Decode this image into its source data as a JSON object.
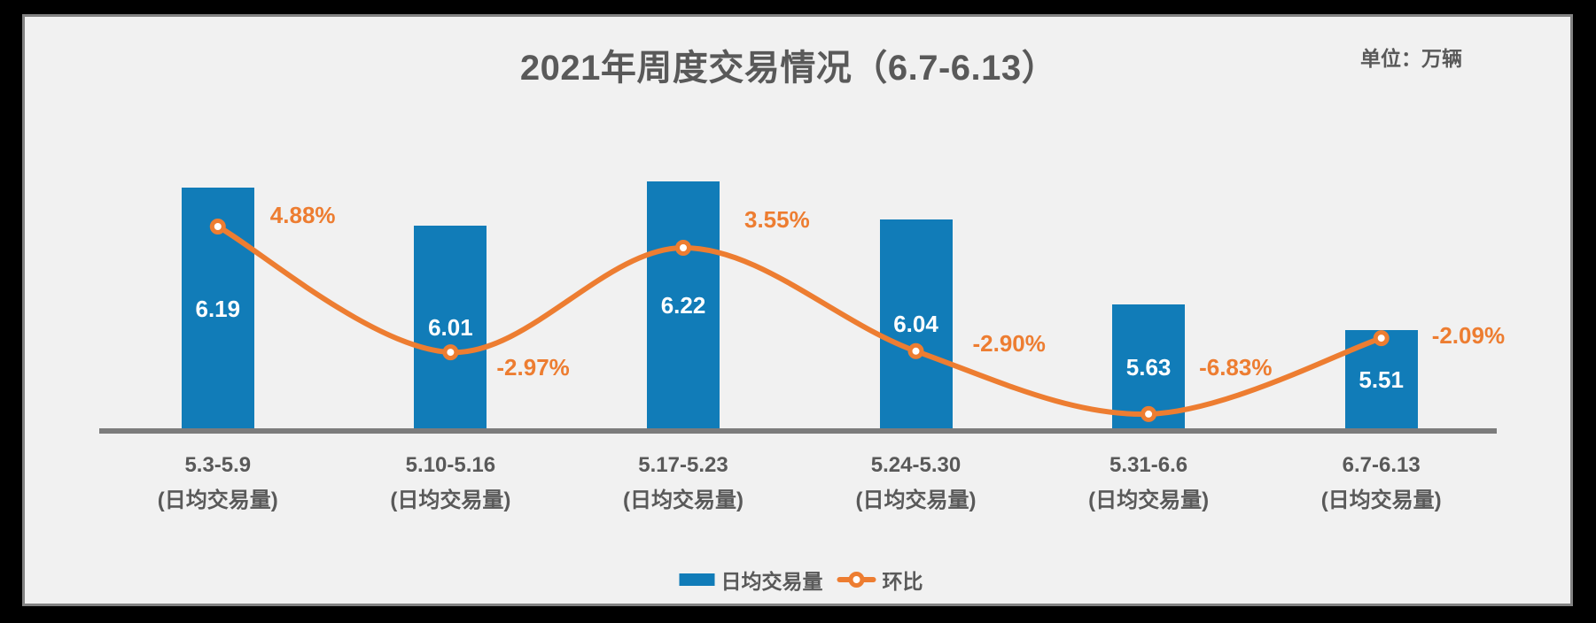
{
  "frame": {
    "outer_background": "#000000",
    "card_background": "#F1F1F1",
    "card_border_color": "#828282",
    "axis_line_color": "#7C7C7C",
    "text_color": "#595959"
  },
  "header": {
    "title": "2021年周度交易情况（6.7-6.13）",
    "unit_label": "单位：万辆"
  },
  "chart_data": {
    "type": "bar",
    "subtype": "combo-bar-line",
    "title": "2021年周度交易情况（6.7-6.13）",
    "unit": "万辆",
    "grid": false,
    "legend_position": "bottom",
    "categories": [
      "5.3-5.9",
      "5.10-5.16",
      "5.17-5.23",
      "5.24-5.30",
      "5.31-6.6",
      "6.7-6.13"
    ],
    "category_sub_label": "(日均交易量)",
    "series": [
      {
        "name": "日均交易量",
        "type": "bar",
        "color": "#117CB8",
        "values": [
          6.19,
          6.01,
          6.22,
          6.04,
          5.63,
          5.51
        ],
        "value_labels": [
          "6.19",
          "6.01",
          "6.22",
          "6.04",
          "5.63",
          "5.51"
        ],
        "value_label_color": "#FFFFFF",
        "axis_min": 5.03,
        "axis_max": 6.45
      },
      {
        "name": "环比",
        "type": "line",
        "color": "#ED7D31",
        "marker": "circle-white-fill",
        "values_pct": [
          4.88,
          -2.97,
          3.55,
          -2.9,
          -6.83,
          -2.09
        ],
        "point_labels": [
          "4.88%",
          "-2.97%",
          "3.55%",
          "-2.90%",
          "-6.83%",
          "-2.09%"
        ],
        "label_offsets": [
          [
            59,
            -26
          ],
          [
            52,
            4
          ],
          [
            69,
            -45
          ],
          [
            64,
            -22
          ],
          [
            57,
            -66
          ],
          [
            57,
            -16
          ]
        ]
      }
    ]
  },
  "legend": {
    "items": [
      {
        "label": "日均交易量",
        "swatch": "bar",
        "color": "#117CB8"
      },
      {
        "label": "环比",
        "swatch": "line-marker",
        "color": "#ED7D31"
      }
    ]
  }
}
